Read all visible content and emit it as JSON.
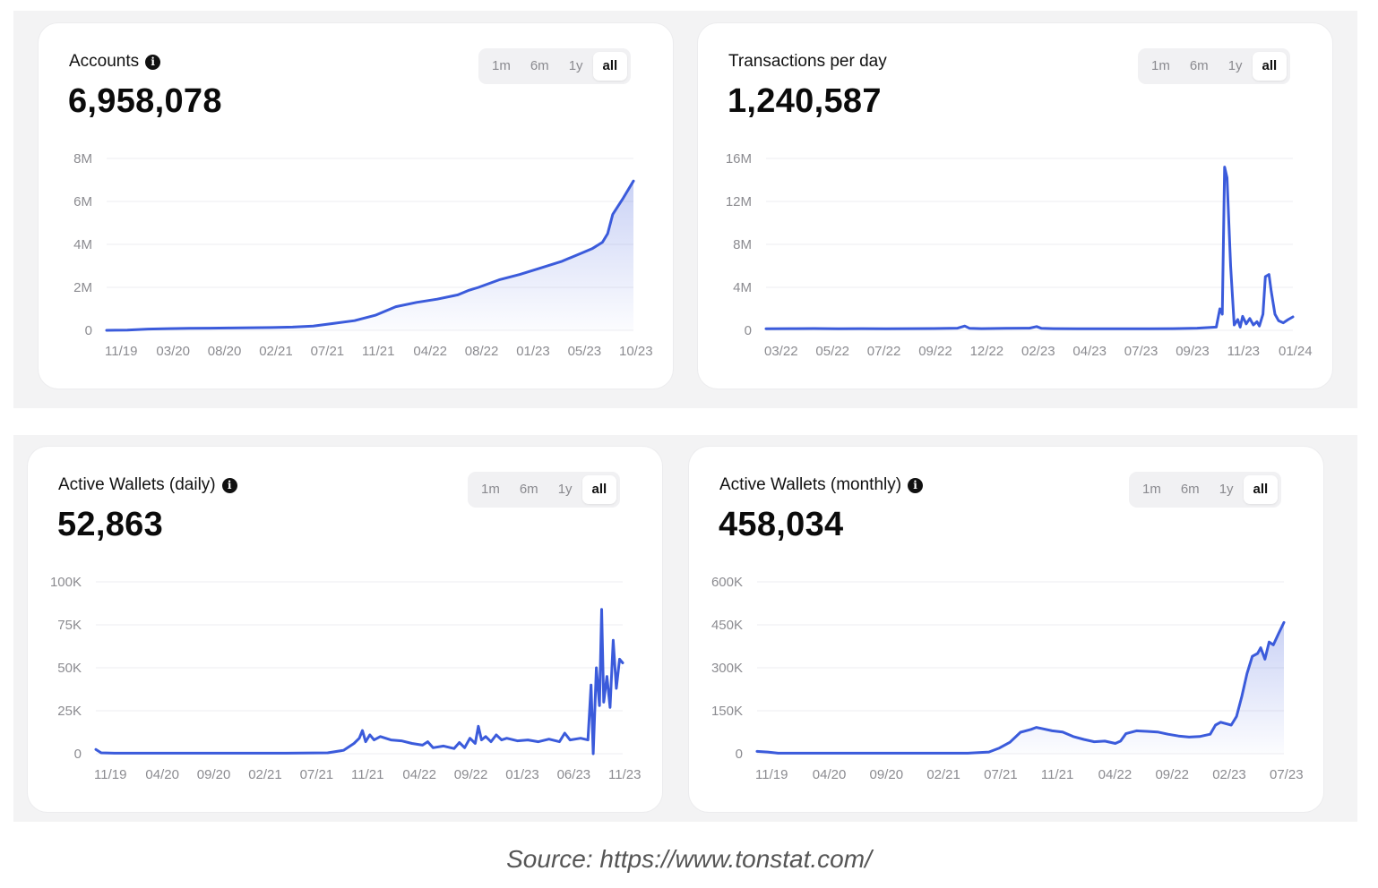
{
  "range_buttons": [
    "1m",
    "6m",
    "1y",
    "all"
  ],
  "active_range": "all",
  "source": "Source: https://www.tonstat.com/",
  "colors": {
    "line": "#3b5bdb",
    "fill_top": "#5a73e0",
    "grid": "#ededf0",
    "axis_text": "#8b8b90"
  },
  "chart_data": [
    {
      "id": "accounts",
      "type": "area",
      "title": "Accounts",
      "info_icon": "info-icon",
      "value": "6,958,078",
      "x_ticks": [
        "11/19",
        "03/20",
        "08/20",
        "02/21",
        "07/21",
        "11/21",
        "04/22",
        "08/22",
        "01/23",
        "05/23",
        "10/23"
      ],
      "y_ticks": [
        "8M",
        "6M",
        "4M",
        "2M",
        "0"
      ],
      "ylim": [
        0,
        8000000
      ],
      "t_range": [
        0,
        51
      ],
      "points": [
        [
          0,
          0
        ],
        [
          2,
          10000
        ],
        [
          4,
          60000
        ],
        [
          6,
          80000
        ],
        [
          8,
          90000
        ],
        [
          10,
          100000
        ],
        [
          12,
          110000
        ],
        [
          14,
          120000
        ],
        [
          16,
          130000
        ],
        [
          18,
          150000
        ],
        [
          20,
          200000
        ],
        [
          22,
          320000
        ],
        [
          24,
          450000
        ],
        [
          26,
          700000
        ],
        [
          28,
          1100000
        ],
        [
          30,
          1300000
        ],
        [
          32,
          1450000
        ],
        [
          34,
          1650000
        ],
        [
          35,
          1850000
        ],
        [
          36,
          2000000
        ],
        [
          38,
          2350000
        ],
        [
          40,
          2600000
        ],
        [
          42,
          2900000
        ],
        [
          44,
          3200000
        ],
        [
          46,
          3600000
        ],
        [
          47,
          3800000
        ],
        [
          48,
          4100000
        ],
        [
          48.5,
          4500000
        ],
        [
          49,
          5400000
        ],
        [
          50,
          6150000
        ],
        [
          51,
          6950000
        ]
      ]
    },
    {
      "id": "transactions",
      "type": "line",
      "title": "Transactions per day",
      "info_icon": "",
      "value": "1,240,587",
      "x_ticks": [
        "03/22",
        "05/22",
        "07/22",
        "09/22",
        "12/22",
        "02/23",
        "04/23",
        "07/23",
        "09/23",
        "11/23",
        "01/24"
      ],
      "y_ticks": [
        "16M",
        "12M",
        "8M",
        "4M",
        "0"
      ],
      "ylim": [
        0,
        16000000
      ],
      "t_range": [
        0,
        22
      ],
      "points": [
        [
          0,
          150000
        ],
        [
          1,
          160000
        ],
        [
          2,
          170000
        ],
        [
          3,
          150000
        ],
        [
          4,
          160000
        ],
        [
          5,
          150000
        ],
        [
          6,
          160000
        ],
        [
          7,
          170000
        ],
        [
          8,
          200000
        ],
        [
          8.3,
          400000
        ],
        [
          8.5,
          180000
        ],
        [
          9,
          160000
        ],
        [
          10,
          180000
        ],
        [
          11,
          200000
        ],
        [
          11.3,
          350000
        ],
        [
          11.5,
          180000
        ],
        [
          12,
          160000
        ],
        [
          13,
          150000
        ],
        [
          14,
          150000
        ],
        [
          15,
          150000
        ],
        [
          16,
          150000
        ],
        [
          17,
          160000
        ],
        [
          18,
          200000
        ],
        [
          18.8,
          300000
        ],
        [
          18.95,
          2000000
        ],
        [
          19.05,
          1500000
        ],
        [
          19.15,
          15200000
        ],
        [
          19.25,
          14200000
        ],
        [
          19.4,
          6000000
        ],
        [
          19.55,
          500000
        ],
        [
          19.7,
          1000000
        ],
        [
          19.8,
          300000
        ],
        [
          19.9,
          1300000
        ],
        [
          20.05,
          600000
        ],
        [
          20.2,
          1100000
        ],
        [
          20.35,
          500000
        ],
        [
          20.5,
          800000
        ],
        [
          20.6,
          400000
        ],
        [
          20.75,
          1500000
        ],
        [
          20.85,
          5000000
        ],
        [
          21.0,
          5200000
        ],
        [
          21.1,
          3600000
        ],
        [
          21.25,
          1500000
        ],
        [
          21.4,
          900000
        ],
        [
          21.6,
          700000
        ],
        [
          21.8,
          1000000
        ],
        [
          22,
          1250000
        ]
      ]
    },
    {
      "id": "active_wallets_daily",
      "type": "line",
      "title": "Active Wallets (daily)",
      "info_icon": "info-icon",
      "value": "52,863",
      "x_ticks": [
        "11/19",
        "04/20",
        "09/20",
        "02/21",
        "07/21",
        "11/21",
        "04/22",
        "09/22",
        "01/23",
        "06/23",
        "11/23"
      ],
      "y_ticks": [
        "100K",
        "75K",
        "50K",
        "25K",
        "0"
      ],
      "ylim": [
        0,
        100000
      ],
      "t_range": [
        0,
        50
      ],
      "points": [
        [
          0,
          2500
        ],
        [
          0.5,
          500
        ],
        [
          2,
          300
        ],
        [
          6,
          300
        ],
        [
          10,
          300
        ],
        [
          14,
          300
        ],
        [
          18,
          300
        ],
        [
          22,
          500
        ],
        [
          23.5,
          2000
        ],
        [
          24.5,
          6000
        ],
        [
          25,
          9000
        ],
        [
          25.3,
          13500
        ],
        [
          25.6,
          7000
        ],
        [
          26,
          11000
        ],
        [
          26.4,
          8000
        ],
        [
          27,
          10000
        ],
        [
          28,
          8000
        ],
        [
          29,
          7500
        ],
        [
          30,
          6000
        ],
        [
          31,
          5000
        ],
        [
          31.5,
          7000
        ],
        [
          32,
          3500
        ],
        [
          33,
          4500
        ],
        [
          34,
          3000
        ],
        [
          34.5,
          6500
        ],
        [
          35,
          3500
        ],
        [
          35.5,
          9000
        ],
        [
          36,
          6000
        ],
        [
          36.3,
          16000
        ],
        [
          36.6,
          8000
        ],
        [
          37,
          10000
        ],
        [
          37.5,
          7000
        ],
        [
          38,
          11000
        ],
        [
          38.5,
          8000
        ],
        [
          39,
          9000
        ],
        [
          40,
          7500
        ],
        [
          41,
          8000
        ],
        [
          42,
          7000
        ],
        [
          43,
          8500
        ],
        [
          44,
          7000
        ],
        [
          44.5,
          12000
        ],
        [
          45,
          8000
        ],
        [
          46,
          9000
        ],
        [
          46.7,
          8000
        ],
        [
          47.0,
          40000
        ],
        [
          47.2,
          0
        ],
        [
          47.5,
          50000
        ],
        [
          47.8,
          28000
        ],
        [
          48.0,
          84000
        ],
        [
          48.2,
          30000
        ],
        [
          48.5,
          45000
        ],
        [
          48.8,
          27000
        ],
        [
          49.1,
          66000
        ],
        [
          49.4,
          38000
        ],
        [
          49.7,
          55000
        ],
        [
          50,
          52863
        ]
      ]
    },
    {
      "id": "active_wallets_monthly",
      "type": "area",
      "title": "Active Wallets (monthly)",
      "info_icon": "info-icon",
      "value": "458,034",
      "x_ticks": [
        "11/19",
        "04/20",
        "09/20",
        "02/21",
        "07/21",
        "11/21",
        "04/22",
        "09/22",
        "02/23",
        "07/23"
      ],
      "y_ticks": [
        "600K",
        "450K",
        "300K",
        "150K",
        "0"
      ],
      "ylim": [
        0,
        600000
      ],
      "t_range": [
        0,
        50
      ],
      "points": [
        [
          0,
          8000
        ],
        [
          1,
          6000
        ],
        [
          2,
          2000
        ],
        [
          6,
          2000
        ],
        [
          10,
          2000
        ],
        [
          14,
          2000
        ],
        [
          20,
          2000
        ],
        [
          22,
          6000
        ],
        [
          23,
          20000
        ],
        [
          24,
          40000
        ],
        [
          25,
          75000
        ],
        [
          26,
          85000
        ],
        [
          26.5,
          92000
        ],
        [
          27,
          88000
        ],
        [
          28,
          80000
        ],
        [
          29,
          76000
        ],
        [
          30,
          60000
        ],
        [
          31,
          50000
        ],
        [
          32,
          42000
        ],
        [
          33,
          44000
        ],
        [
          34,
          36000
        ],
        [
          34.5,
          44000
        ],
        [
          35,
          70000
        ],
        [
          36,
          80000
        ],
        [
          37,
          78000
        ],
        [
          38,
          76000
        ],
        [
          39,
          68000
        ],
        [
          40,
          62000
        ],
        [
          41,
          58000
        ],
        [
          42,
          60000
        ],
        [
          43,
          68000
        ],
        [
          43.5,
          100000
        ],
        [
          44,
          110000
        ],
        [
          45,
          100000
        ],
        [
          45.5,
          130000
        ],
        [
          46,
          200000
        ],
        [
          46.5,
          280000
        ],
        [
          47,
          340000
        ],
        [
          47.5,
          350000
        ],
        [
          47.8,
          370000
        ],
        [
          48.2,
          330000
        ],
        [
          48.6,
          390000
        ],
        [
          49,
          380000
        ],
        [
          49.5,
          420000
        ],
        [
          50,
          458000
        ]
      ]
    }
  ]
}
